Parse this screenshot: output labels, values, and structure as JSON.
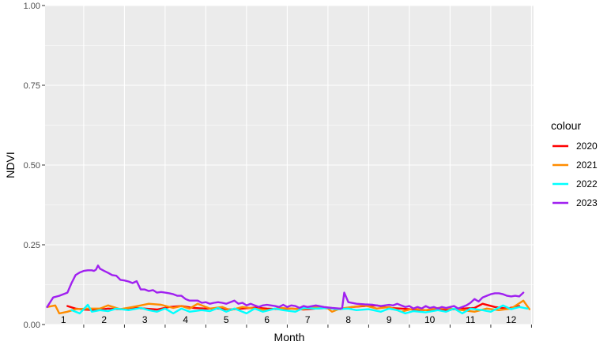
{
  "chart_data": {
    "type": "line",
    "xlabel": "Month",
    "ylabel": "NDVI",
    "xlim": [
      0.55,
      12.55
    ],
    "ylim": [
      0,
      1
    ],
    "y_ticks": [
      "0.00",
      "0.25",
      "0.50",
      "0.75",
      "1.00"
    ],
    "x_ticks": [
      "1",
      "2",
      "3",
      "4",
      "5",
      "6",
      "7",
      "8",
      "9",
      "10",
      "11",
      "12"
    ],
    "grid": true,
    "legend_title": "colour",
    "legend_position": "right",
    "series": [
      {
        "name": "2020",
        "color": "#ff0000",
        "x": [
          1.1,
          1.3,
          1.5,
          1.8,
          2.1,
          2.4,
          2.7,
          3.0,
          3.3,
          3.6,
          3.9,
          4.2,
          4.5,
          4.8,
          5.1,
          5.4,
          5.7,
          6.0,
          6.3,
          6.6,
          6.9,
          7.2,
          7.5,
          7.8,
          8.1,
          8.4,
          8.7,
          9.0,
          9.3,
          9.6,
          9.9,
          10.2,
          10.5,
          10.8,
          11.1,
          11.3,
          11.6,
          11.9,
          12.2
        ],
        "y": [
          0.058,
          0.05,
          0.047,
          0.045,
          0.05,
          0.048,
          0.053,
          0.05,
          0.047,
          0.055,
          0.058,
          0.052,
          0.05,
          0.05,
          0.047,
          0.05,
          0.053,
          0.05,
          0.048,
          0.05,
          0.047,
          0.05,
          0.052,
          0.048,
          0.055,
          0.058,
          0.06,
          0.052,
          0.05,
          0.047,
          0.045,
          0.045,
          0.047,
          0.05,
          0.052,
          0.065,
          0.055,
          0.05,
          0.058
        ]
      },
      {
        "name": "2021",
        "color": "#ff8c00",
        "x": [
          0.6,
          0.8,
          0.9,
          1.1,
          1.3,
          1.6,
          1.9,
          2.1,
          2.4,
          2.7,
          2.9,
          3.1,
          3.4,
          3.7,
          3.9,
          4.1,
          4.3,
          4.6,
          4.9,
          5.1,
          5.4,
          5.7,
          6.0,
          6.3,
          6.6,
          6.9,
          7.2,
          7.5,
          7.6,
          7.8,
          8.1,
          8.4,
          8.7,
          9.0,
          9.3,
          9.6,
          9.9,
          10.2,
          10.5,
          10.8,
          11.1,
          11.4,
          11.7,
          12.0,
          12.3,
          12.45
        ],
        "y": [
          0.055,
          0.06,
          0.035,
          0.04,
          0.048,
          0.05,
          0.05,
          0.06,
          0.048,
          0.055,
          0.06,
          0.065,
          0.062,
          0.052,
          0.058,
          0.05,
          0.065,
          0.05,
          0.055,
          0.045,
          0.055,
          0.05,
          0.045,
          0.052,
          0.05,
          0.048,
          0.055,
          0.05,
          0.04,
          0.05,
          0.055,
          0.06,
          0.05,
          0.055,
          0.04,
          0.05,
          0.045,
          0.052,
          0.05,
          0.045,
          0.04,
          0.05,
          0.045,
          0.05,
          0.075,
          0.048
        ]
      },
      {
        "name": "2022",
        "color": "#00ffff",
        "x": [
          1.2,
          1.4,
          1.6,
          1.7,
          1.9,
          2.1,
          2.3,
          2.6,
          2.9,
          3.1,
          3.3,
          3.5,
          3.7,
          3.9,
          4.1,
          4.4,
          4.6,
          4.8,
          5.0,
          5.2,
          5.5,
          5.7,
          5.9,
          6.2,
          6.4,
          6.7,
          6.9,
          7.2,
          7.5,
          7.7,
          8.0,
          8.2,
          8.5,
          8.8,
          9.0,
          9.2,
          9.4,
          9.6,
          9.9,
          10.2,
          10.4,
          10.6,
          10.8,
          11.0,
          11.3,
          11.5,
          11.8,
          12.0,
          12.2,
          12.4
        ],
        "y": [
          0.045,
          0.035,
          0.062,
          0.04,
          0.045,
          0.042,
          0.05,
          0.045,
          0.052,
          0.045,
          0.04,
          0.05,
          0.035,
          0.05,
          0.04,
          0.045,
          0.042,
          0.052,
          0.04,
          0.05,
          0.035,
          0.05,
          0.04,
          0.05,
          0.045,
          0.04,
          0.052,
          0.05,
          0.052,
          0.048,
          0.05,
          0.045,
          0.048,
          0.04,
          0.05,
          0.045,
          0.035,
          0.042,
          0.038,
          0.045,
          0.04,
          0.05,
          0.035,
          0.05,
          0.045,
          0.04,
          0.06,
          0.048,
          0.055,
          0.05
        ]
      },
      {
        "name": "2023",
        "color": "#a020f0",
        "x": [
          0.6,
          0.75,
          0.9,
          1.1,
          1.2,
          1.3,
          1.4,
          1.5,
          1.6,
          1.7,
          1.75,
          1.8,
          1.85,
          1.9,
          2.0,
          2.1,
          2.2,
          2.3,
          2.4,
          2.5,
          2.6,
          2.7,
          2.8,
          2.9,
          3.0,
          3.1,
          3.2,
          3.3,
          3.4,
          3.5,
          3.6,
          3.7,
          3.8,
          3.9,
          4.0,
          4.1,
          4.2,
          4.3,
          4.4,
          4.5,
          4.6,
          4.7,
          4.8,
          4.9,
          5.0,
          5.1,
          5.2,
          5.3,
          5.4,
          5.5,
          5.6,
          5.7,
          5.8,
          5.9,
          6.0,
          6.1,
          6.2,
          6.3,
          6.4,
          6.5,
          6.6,
          6.7,
          6.8,
          6.9,
          7.0,
          7.2,
          7.4,
          7.6,
          7.8,
          7.85,
          7.9,
          8.0,
          8.2,
          8.4,
          8.6,
          8.8,
          9.0,
          9.1,
          9.2,
          9.3,
          9.4,
          9.5,
          9.6,
          9.7,
          9.8,
          9.9,
          10.0,
          10.1,
          10.2,
          10.3,
          10.4,
          10.5,
          10.6,
          10.7,
          10.8,
          10.9,
          11.0,
          11.1,
          11.2,
          11.3,
          11.4,
          11.5,
          11.6,
          11.7,
          11.8,
          11.9,
          12.0,
          12.1,
          12.2,
          12.3
        ],
        "y": [
          0.055,
          0.085,
          0.09,
          0.1,
          0.13,
          0.155,
          0.163,
          0.168,
          0.17,
          0.17,
          0.168,
          0.172,
          0.185,
          0.175,
          0.168,
          0.162,
          0.155,
          0.153,
          0.14,
          0.138,
          0.135,
          0.13,
          0.136,
          0.11,
          0.11,
          0.105,
          0.108,
          0.1,
          0.102,
          0.1,
          0.098,
          0.095,
          0.09,
          0.09,
          0.08,
          0.075,
          0.075,
          0.075,
          0.068,
          0.07,
          0.065,
          0.068,
          0.07,
          0.068,
          0.065,
          0.07,
          0.075,
          0.065,
          0.068,
          0.06,
          0.065,
          0.06,
          0.055,
          0.06,
          0.062,
          0.06,
          0.058,
          0.055,
          0.062,
          0.055,
          0.06,
          0.058,
          0.052,
          0.058,
          0.055,
          0.06,
          0.055,
          0.052,
          0.05,
          0.052,
          0.1,
          0.07,
          0.065,
          0.063,
          0.062,
          0.058,
          0.062,
          0.06,
          0.065,
          0.06,
          0.055,
          0.058,
          0.05,
          0.055,
          0.05,
          0.058,
          0.052,
          0.055,
          0.05,
          0.055,
          0.052,
          0.055,
          0.058,
          0.05,
          0.055,
          0.06,
          0.068,
          0.08,
          0.072,
          0.085,
          0.09,
          0.095,
          0.098,
          0.098,
          0.095,
          0.09,
          0.088,
          0.09,
          0.088,
          0.1
        ]
      }
    ]
  }
}
